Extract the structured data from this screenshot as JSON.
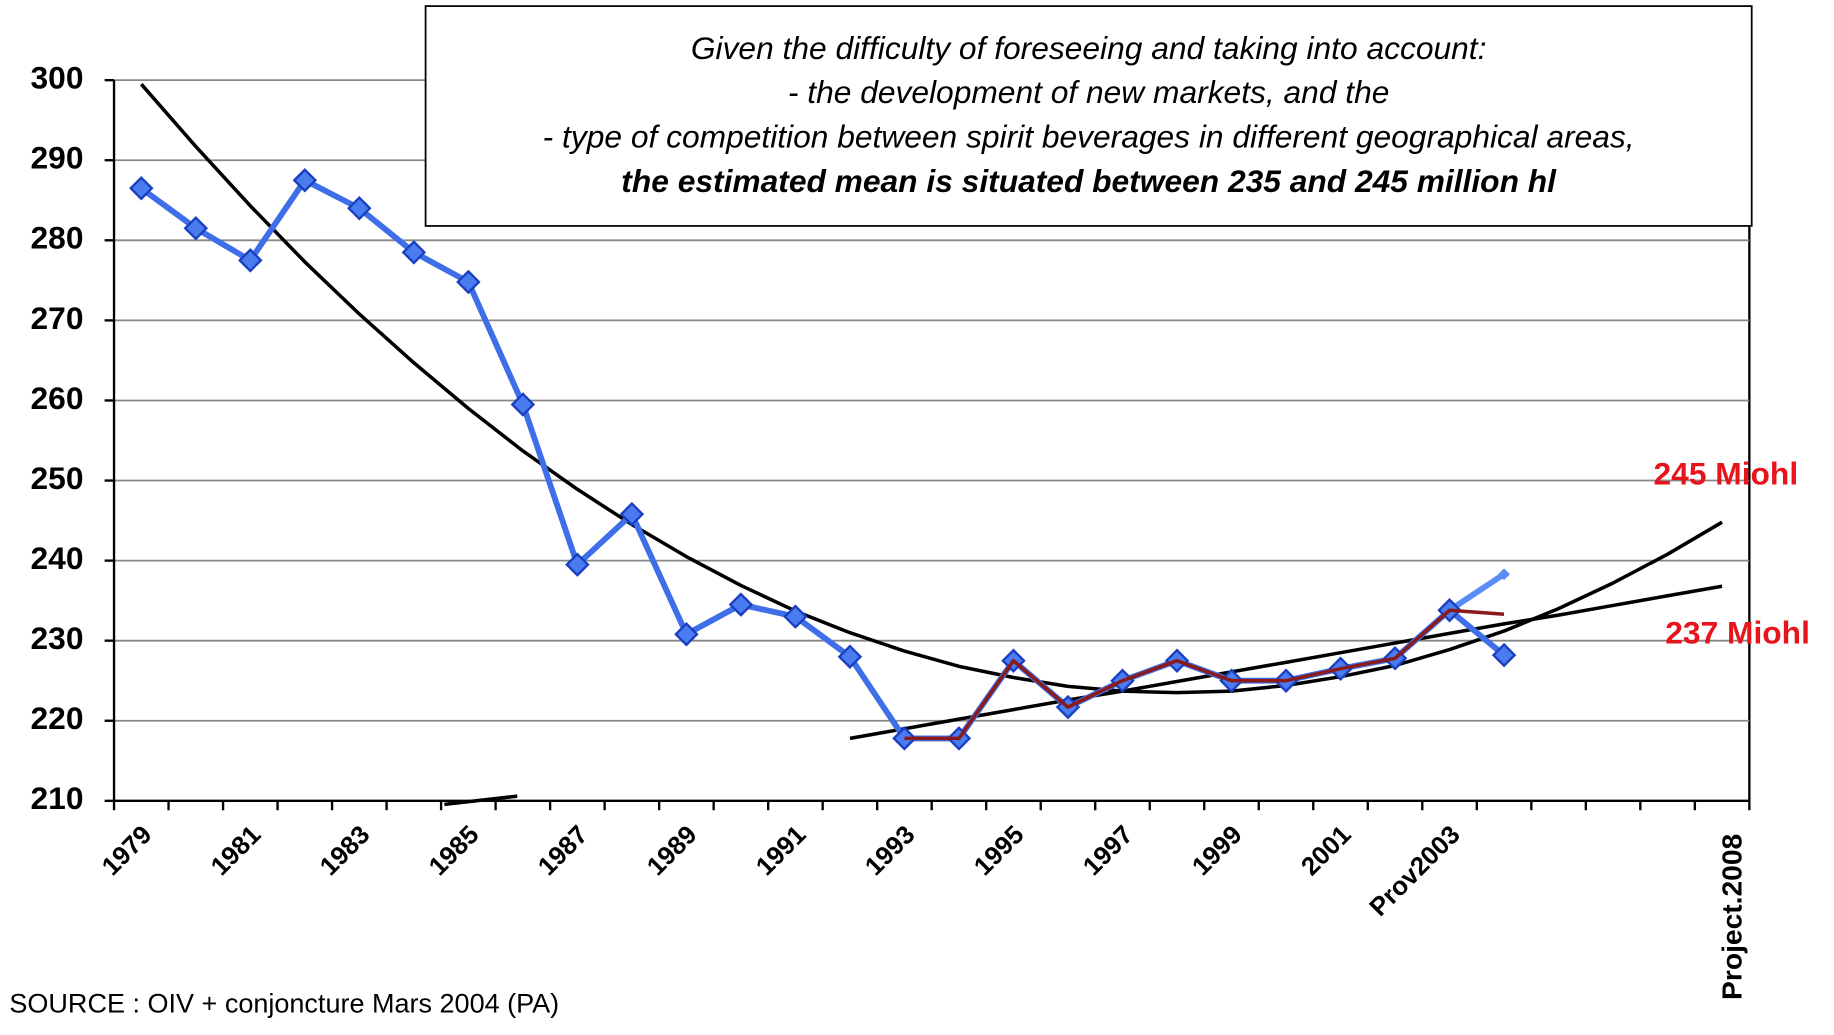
{
  "chart_data": {
    "type": "line",
    "categories": [
      "1979",
      null,
      "1981",
      null,
      "1983",
      null,
      "1985",
      null,
      "1987",
      null,
      "1989",
      null,
      "1991",
      null,
      "1993",
      null,
      "1995",
      null,
      "1997",
      null,
      "1999",
      null,
      "2001",
      null,
      "Prov2003",
      null,
      null,
      null,
      null,
      "Project.2008"
    ],
    "projection_label_color": "#e8141c",
    "series": [
      {
        "color": "#000000",
        "marker": "none",
        "width": 3,
        "values": [
          299.5,
          291.7,
          284.3,
          277.3,
          270.8,
          264.7,
          259.0,
          253.7,
          248.9,
          244.5,
          240.5,
          236.9,
          233.7,
          231.0,
          228.7,
          226.8,
          225.4,
          224.3,
          223.7,
          223.5,
          223.7,
          224.4,
          225.5,
          226.9,
          228.9,
          231.2,
          234.0,
          237.2,
          240.8,
          244.8
        ]
      },
      {
        "color": "#000000",
        "marker": "none",
        "width": 3,
        "values": [
          null,
          null,
          null,
          null,
          null,
          null,
          null,
          null,
          null,
          null,
          null,
          null,
          null,
          217.8,
          219.0,
          220.2,
          221.4,
          222.6,
          223.7,
          224.9,
          226.1,
          227.3,
          228.5,
          229.7,
          230.9,
          232.1,
          233.2,
          234.4,
          235.6,
          236.8
        ]
      },
      {
        "color": "#5b8cf5",
        "marker": "small",
        "width": 5,
        "values": [
          null,
          null,
          null,
          null,
          null,
          null,
          null,
          null,
          null,
          null,
          null,
          null,
          null,
          null,
          null,
          null,
          null,
          null,
          null,
          null,
          null,
          null,
          null,
          null,
          233.8,
          238.3,
          null,
          null,
          null,
          null
        ]
      },
      {
        "color": "#3f6fe8",
        "marker": "diamond",
        "width": 5,
        "values": [
          286.5,
          281.5,
          277.5,
          287.5,
          284.0,
          278.5,
          274.8,
          259.5,
          239.5,
          245.8,
          230.8,
          234.5,
          233.0,
          228.0,
          217.8,
          217.8,
          227.5,
          221.7,
          225.0,
          227.5,
          225.0,
          225.0,
          226.5,
          227.8,
          233.8,
          228.2,
          null,
          null,
          null,
          null
        ]
      },
      {
        "color": "#8b1a1a",
        "marker": "none",
        "width": 3,
        "values": [
          null,
          null,
          null,
          null,
          null,
          null,
          null,
          null,
          null,
          null,
          null,
          null,
          null,
          null,
          217.8,
          217.8,
          227.5,
          221.7,
          225.0,
          227.5,
          225.0,
          225.0,
          226.5,
          227.8,
          233.8,
          233.3,
          null,
          null,
          null,
          null
        ]
      }
    ],
    "ylim": [
      210,
      300
    ],
    "yticks": [
      210,
      220,
      230,
      240,
      250,
      260,
      270,
      280,
      290,
      300
    ],
    "grid": true,
    "annotation_box": {
      "lines": [
        "Given the difficulty of foreseeing and taking into account:",
        "- the development of new markets, and the",
        "- type of competition between spirit beverages in different geographical areas,"
      ],
      "highlight": "the estimated mean is situated between 235 and 245 million hl",
      "highlight_color": "#e8141c"
    },
    "side_labels": [
      {
        "text": "245 Miohl",
        "color": "#e8141c"
      },
      {
        "text": "237 Miohl",
        "color": "#e8141c"
      }
    ],
    "source": "SOURCE : OIV  + conjoncture Mars 2004 (PA)"
  }
}
